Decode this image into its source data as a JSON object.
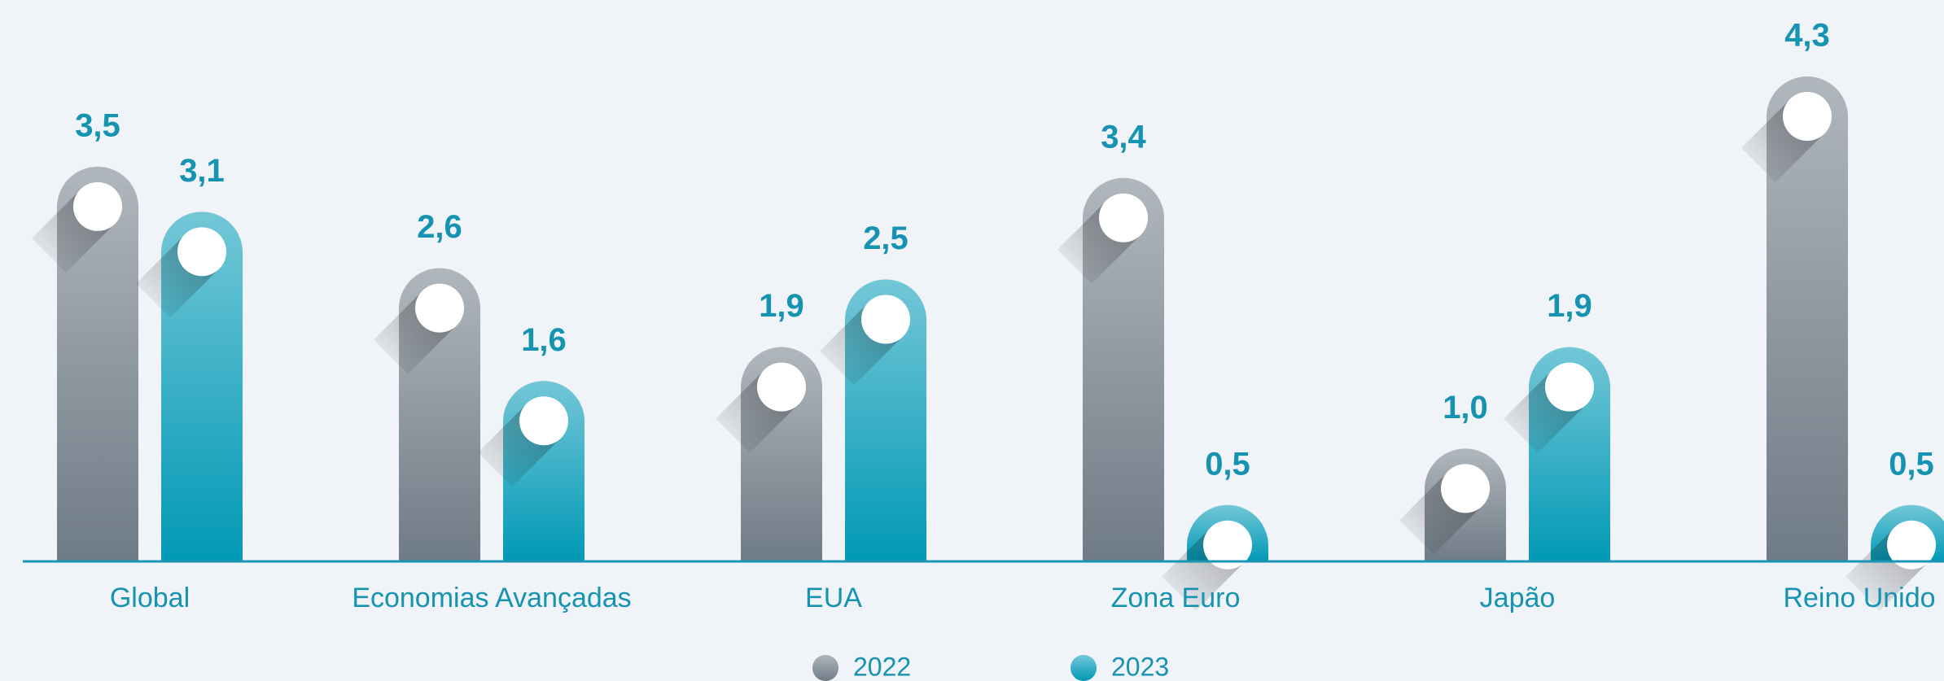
{
  "chart_data": {
    "type": "bar",
    "categories": [
      "Global",
      "Economias Avançadas",
      "EUA",
      "Zona Euro",
      "Japão",
      "Reino Unido"
    ],
    "series": [
      {
        "name": "2022",
        "color": "#6f7b86",
        "values": [
          3.5,
          2.6,
          1.9,
          3.4,
          1.0,
          4.3
        ],
        "value_labels": [
          "3,5",
          "2,6",
          "1,9",
          "3,4",
          "1,0",
          "4,3"
        ]
      },
      {
        "name": "2023",
        "color": "#0199b6",
        "values": [
          3.1,
          1.6,
          2.5,
          0.5,
          1.9,
          0.5
        ],
        "value_labels": [
          "3,1",
          "1,6",
          "2,5",
          "0,5",
          "1,9",
          "0,5"
        ]
      }
    ]
  }
}
